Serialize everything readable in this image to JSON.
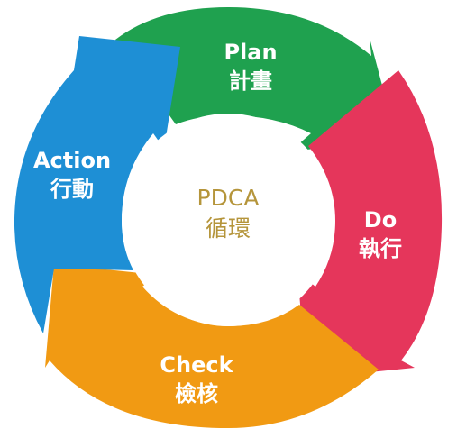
{
  "diagram": {
    "center": {
      "line1": "PDCA",
      "line2": "循環",
      "color": "#b5953b"
    },
    "segments": [
      {
        "id": "plan",
        "line1": "Plan",
        "line2": "計畫",
        "color": "#1fa14f"
      },
      {
        "id": "do",
        "line1": "Do",
        "line2": "執行",
        "color": "#e5365b"
      },
      {
        "id": "check",
        "line1": "Check",
        "line2": "檢核",
        "color": "#f19a13"
      },
      {
        "id": "action",
        "line1": "Action",
        "line2": "行動",
        "color": "#1e8fd5"
      }
    ]
  }
}
